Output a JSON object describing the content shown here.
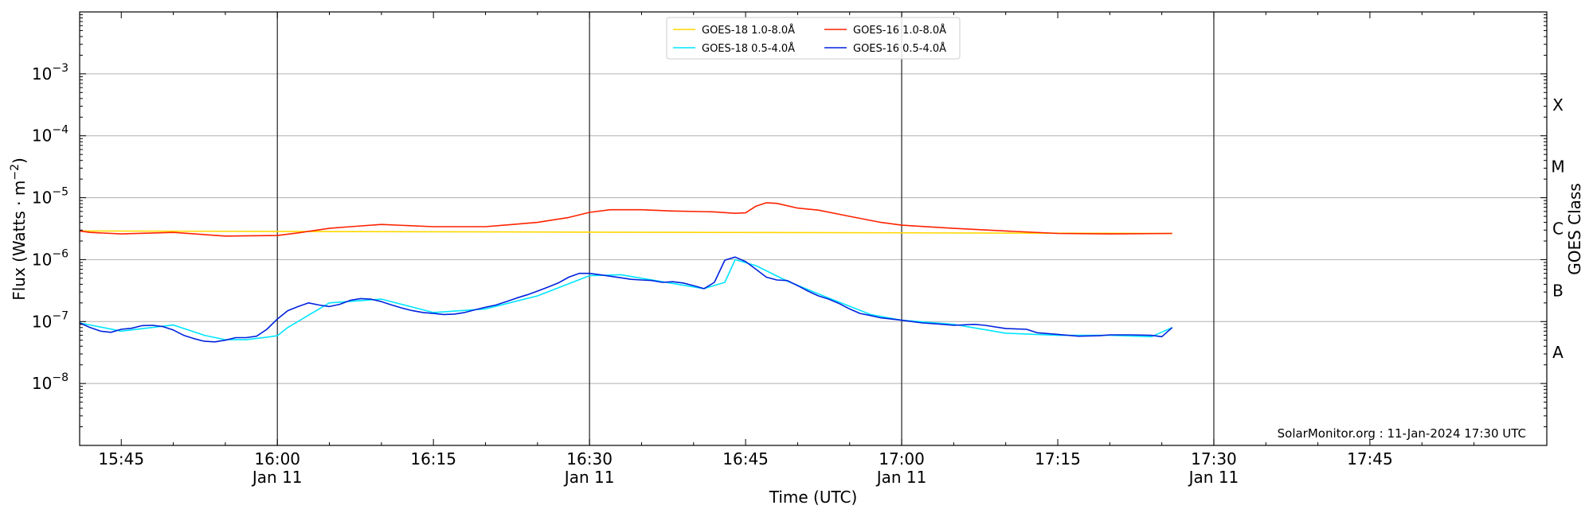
{
  "chart_data": {
    "type": "line",
    "xlabel": "Time (UTC)",
    "ylabel": "Flux (Watts · m",
    "ylabel_exponent": "−2",
    "ylabel_close": ")",
    "right_axis_label": "GOES Class",
    "y_scale": "log",
    "ylim": [
      1e-09,
      0.01
    ],
    "xlim": [
      "15:41",
      "18:02"
    ],
    "y_ticks": [
      {
        "value": 1e-08,
        "base": "10",
        "exp": "−8"
      },
      {
        "value": 1e-07,
        "base": "10",
        "exp": "−7"
      },
      {
        "value": 1e-06,
        "base": "10",
        "exp": "−6"
      },
      {
        "value": 1e-05,
        "base": "10",
        "exp": "−5"
      },
      {
        "value": 0.0001,
        "base": "10",
        "exp": "−4"
      },
      {
        "value": 0.001,
        "base": "10",
        "exp": "−3"
      }
    ],
    "x_ticks": [
      {
        "time": "15:45",
        "label": "15:45"
      },
      {
        "time": "16:00",
        "label": "16:00",
        "date": "Jan 11"
      },
      {
        "time": "16:15",
        "label": "16:15"
      },
      {
        "time": "16:30",
        "label": "16:30",
        "date": "Jan 11"
      },
      {
        "time": "16:45",
        "label": "16:45"
      },
      {
        "time": "17:00",
        "label": "17:00",
        "date": "Jan 11"
      },
      {
        "time": "17:15",
        "label": "17:15"
      },
      {
        "time": "17:30",
        "label": "17:30",
        "date": "Jan 11"
      },
      {
        "time": "17:45",
        "label": "17:45"
      }
    ],
    "vertical_lines": [
      "16:00",
      "16:30",
      "17:00",
      "17:30"
    ],
    "goes_classes": [
      {
        "label": "A",
        "level": 3.16e-08
      },
      {
        "label": "B",
        "level": 3.16e-07
      },
      {
        "label": "C",
        "level": 3.16e-06
      },
      {
        "label": "M",
        "level": 3.16e-05
      },
      {
        "label": "X",
        "level": 0.000316
      }
    ],
    "grid": true,
    "legend_position": "top-center",
    "credit": "SolarMonitor.org : 11-Jan-2024 17:30 UTC",
    "series": [
      {
        "name": "GOES-18 1.0-8.0Å",
        "color": "#ffd700",
        "x": [
          "15:41",
          "17:26"
        ],
        "y": [
          2.9e-06,
          2.65e-06
        ]
      },
      {
        "name": "GOES-18 0.5-4.0Å",
        "color": "#00e5ff",
        "x": [
          "15:41",
          "15:45",
          "15:50",
          "15:53",
          "15:55",
          "15:57",
          "15:59",
          "16:00",
          "16:01",
          "16:05",
          "16:10",
          "16:15",
          "16:20",
          "16:25",
          "16:30",
          "16:33",
          "16:37",
          "16:41",
          "16:43",
          "16:44",
          "16:46",
          "16:49",
          "16:53",
          "16:57",
          "17:00",
          "17:05",
          "17:10",
          "17:15",
          "17:20",
          "17:24",
          "17:26"
        ],
        "y": [
          9.5e-08,
          7e-08,
          8.8e-08,
          6e-08,
          5.1e-08,
          5.1e-08,
          5.6e-08,
          5.9e-08,
          8e-08,
          2e-07,
          2.3e-07,
          1.4e-07,
          1.6e-07,
          2.6e-07,
          5.5e-07,
          5.7e-07,
          4.4e-07,
          3.4e-07,
          4.3e-07,
          1e-06,
          8e-07,
          4.5e-07,
          2.4e-07,
          1.3e-07,
          1.05e-07,
          9e-08,
          6.5e-08,
          6e-08,
          6e-08,
          5.7e-08,
          8e-08
        ]
      },
      {
        "name": "GOES-16 1.0-8.0Å",
        "color": "#ff2200",
        "x": [
          "15:41",
          "15:42",
          "15:45",
          "15:50",
          "15:55",
          "16:00",
          "16:02",
          "16:05",
          "16:07",
          "16:10",
          "16:15",
          "16:20",
          "16:25",
          "16:28",
          "16:30",
          "16:32",
          "16:35",
          "16:38",
          "16:42",
          "16:44",
          "16:45",
          "16:46",
          "16:47",
          "16:48",
          "16:50",
          "16:52",
          "16:55",
          "16:58",
          "17:00",
          "17:05",
          "17:10",
          "17:15",
          "17:20",
          "17:26"
        ],
        "y": [
          2.9e-06,
          2.75e-06,
          2.6e-06,
          2.75e-06,
          2.4e-06,
          2.45e-06,
          2.7e-06,
          3.2e-06,
          3.4e-06,
          3.7e-06,
          3.4e-06,
          3.4e-06,
          4e-06,
          4.8e-06,
          5.8e-06,
          6.4e-06,
          6.4e-06,
          6.1e-06,
          5.9e-06,
          5.6e-06,
          5.7e-06,
          7.3e-06,
          8.3e-06,
          8.1e-06,
          6.8e-06,
          6.3e-06,
          5e-06,
          4e-06,
          3.6e-06,
          3.2e-06,
          2.9e-06,
          2.65e-06,
          2.6e-06,
          2.65e-06
        ]
      },
      {
        "name": "GOES-16 0.5-4.0Å",
        "color": "#0022dd",
        "x": [
          "15:41",
          "15:42",
          "15:43",
          "15:44",
          "15:45",
          "15:46",
          "15:47",
          "15:48",
          "15:49",
          "15:50",
          "15:51",
          "15:52",
          "15:53",
          "15:54",
          "15:55",
          "15:56",
          "15:57",
          "15:58",
          "15:59",
          "16:00",
          "16:01",
          "16:02",
          "16:03",
          "16:04",
          "16:05",
          "16:06",
          "16:07",
          "16:08",
          "16:09",
          "16:10",
          "16:11",
          "16:12",
          "16:13",
          "16:14",
          "16:15",
          "16:16",
          "16:17",
          "16:18",
          "16:19",
          "16:20",
          "16:21",
          "16:22",
          "16:23",
          "16:24",
          "16:25",
          "16:26",
          "16:27",
          "16:28",
          "16:29",
          "16:30",
          "16:31",
          "16:32",
          "16:33",
          "16:34",
          "16:35",
          "16:36",
          "16:37",
          "16:38",
          "16:39",
          "16:40",
          "16:41",
          "16:42",
          "16:43",
          "16:44",
          "16:45",
          "16:46",
          "16:47",
          "16:48",
          "16:49",
          "16:50",
          "16:51",
          "16:52",
          "16:53",
          "16:54",
          "16:55",
          "16:56",
          "16:57",
          "16:58",
          "16:59",
          "17:00",
          "17:02",
          "17:04",
          "17:05",
          "17:07",
          "17:08",
          "17:10",
          "17:12",
          "17:13",
          "17:15",
          "17:17",
          "17:19",
          "17:20",
          "17:22",
          "17:24",
          "17:25",
          "17:26"
        ],
        "y": [
          9.5e-08,
          8e-08,
          7e-08,
          6.7e-08,
          7.5e-08,
          7.8e-08,
          8.6e-08,
          8.7e-08,
          8.3e-08,
          7.3e-08,
          6e-08,
          5.3e-08,
          4.8e-08,
          4.7e-08,
          5e-08,
          5.5e-08,
          5.5e-08,
          5.8e-08,
          7.5e-08,
          1.1e-07,
          1.5e-07,
          1.75e-07,
          2e-07,
          1.85e-07,
          1.75e-07,
          1.9e-07,
          2.2e-07,
          2.35e-07,
          2.3e-07,
          2.1e-07,
          1.85e-07,
          1.65e-07,
          1.5e-07,
          1.4e-07,
          1.35e-07,
          1.3e-07,
          1.32e-07,
          1.4e-07,
          1.55e-07,
          1.7e-07,
          1.85e-07,
          2.1e-07,
          2.4e-07,
          2.7e-07,
          3.1e-07,
          3.6e-07,
          4.2e-07,
          5.2e-07,
          6e-07,
          6e-07,
          5.7e-07,
          5.4e-07,
          5.1e-07,
          4.8e-07,
          4.7e-07,
          4.6e-07,
          4.3e-07,
          4.4e-07,
          4.2e-07,
          3.8e-07,
          3.4e-07,
          4.3e-07,
          9.8e-07,
          1.1e-06,
          9.3e-07,
          7e-07,
          5.2e-07,
          4.7e-07,
          4.6e-07,
          3.8e-07,
          3.1e-07,
          2.6e-07,
          2.3e-07,
          1.95e-07,
          1.6e-07,
          1.35e-07,
          1.25e-07,
          1.15e-07,
          1.1e-07,
          1.05e-07,
          9.5e-08,
          9e-08,
          8.7e-08,
          9e-08,
          8.7e-08,
          7.7e-08,
          7.5e-08,
          6.6e-08,
          6.2e-08,
          5.8e-08,
          5.9e-08,
          6.1e-08,
          6.1e-08,
          6e-08,
          5.7e-08,
          8e-08
        ]
      }
    ]
  }
}
